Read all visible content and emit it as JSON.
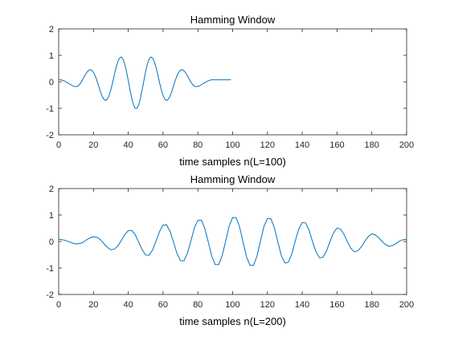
{
  "chart_data": [
    {
      "type": "line",
      "title": "Hamming Window",
      "xlabel": "time samples n(L=100)",
      "ylabel": "",
      "xlim": [
        0,
        200
      ],
      "ylim": [
        -2,
        2
      ],
      "xticks": [
        0,
        20,
        40,
        60,
        80,
        100,
        120,
        140,
        160,
        180,
        200
      ],
      "yticks": [
        -2,
        -1,
        0,
        1,
        2
      ],
      "grid": false,
      "series": [
        {
          "color": "#0072bd",
          "x": [
            0,
            1,
            2,
            3,
            4,
            5,
            6,
            7,
            8,
            9,
            10,
            11,
            12,
            13,
            14,
            15,
            16,
            17,
            18,
            19,
            20,
            21,
            22,
            23,
            24,
            25,
            26,
            27,
            28,
            29,
            30,
            31,
            32,
            33,
            34,
            35,
            36,
            37,
            38,
            39,
            40,
            41,
            42,
            43,
            44,
            45,
            46,
            47,
            48,
            49,
            50,
            51,
            52,
            53,
            54,
            55,
            56,
            57,
            58,
            59,
            60,
            61,
            62,
            63,
            64,
            65,
            66,
            67,
            68,
            69,
            70,
            71,
            72,
            73,
            74,
            75,
            76,
            77,
            78,
            79,
            80,
            81,
            82,
            83,
            84,
            85,
            86,
            87,
            88,
            89,
            90,
            91,
            92,
            93,
            94,
            95,
            96,
            97,
            98,
            99
          ],
          "y": [
            0.08,
            0.08,
            0.06,
            0.04,
            0.01,
            -0.03,
            -0.07,
            -0.11,
            -0.15,
            -0.17,
            -0.18,
            -0.16,
            -0.1,
            -0.01,
            0.11,
            0.23,
            0.34,
            0.42,
            0.46,
            0.44,
            0.36,
            0.23,
            0.05,
            -0.16,
            -0.37,
            -0.54,
            -0.66,
            -0.7,
            -0.65,
            -0.51,
            -0.3,
            -0.03,
            0.26,
            0.54,
            0.76,
            0.9,
            0.94,
            0.86,
            0.67,
            0.39,
            0.05,
            -0.3,
            -0.62,
            -0.87,
            -1.0,
            -1.0,
            -0.87,
            -0.62,
            -0.3,
            0.05,
            0.39,
            0.67,
            0.86,
            0.94,
            0.9,
            0.76,
            0.54,
            0.26,
            -0.03,
            -0.3,
            -0.51,
            -0.65,
            -0.7,
            -0.66,
            -0.54,
            -0.37,
            -0.16,
            0.05,
            0.23,
            0.36,
            0.44,
            0.46,
            0.42,
            0.34,
            0.23,
            0.11,
            -0.01,
            -0.1,
            -0.16,
            -0.18,
            -0.17,
            -0.15,
            -0.11,
            -0.07,
            -0.03,
            0.01,
            0.04,
            0.06,
            0.08,
            0.08,
            0.08,
            0.08,
            0.08,
            0.08,
            0.08,
            0.08,
            0.08,
            0.08,
            0.08,
            0.08
          ]
        }
      ]
    },
    {
      "type": "line",
      "title": "Hamming Window",
      "xlabel": "time samples n(L=200)",
      "ylabel": "",
      "xlim": [
        0,
        200
      ],
      "ylim": [
        -2,
        2
      ],
      "xticks": [
        0,
        20,
        40,
        60,
        80,
        100,
        120,
        140,
        160,
        180,
        200
      ],
      "yticks": [
        -2,
        -1,
        0,
        1,
        2
      ],
      "grid": false,
      "series": [
        {
          "color": "#0072bd",
          "x": [
            0,
            2,
            4,
            6,
            8,
            10,
            12,
            14,
            16,
            18,
            20,
            22,
            24,
            26,
            28,
            30,
            32,
            34,
            36,
            38,
            40,
            42,
            44,
            46,
            48,
            50,
            52,
            54,
            56,
            58,
            60,
            62,
            64,
            66,
            68,
            70,
            72,
            74,
            76,
            78,
            80,
            82,
            84,
            86,
            88,
            90,
            92,
            94,
            96,
            98,
            100,
            102,
            104,
            106,
            108,
            110,
            112,
            114,
            116,
            118,
            120,
            122,
            124,
            126,
            128,
            130,
            132,
            134,
            136,
            138,
            140,
            142,
            144,
            146,
            148,
            150,
            152,
            154,
            156,
            158,
            160,
            162,
            164,
            166,
            168,
            170,
            172,
            174,
            176,
            178,
            180,
            182,
            184,
            186,
            188,
            190,
            192,
            194,
            196,
            198,
            200
          ],
          "y": [
            0.08,
            0.07,
            0.04,
            -0.01,
            -0.06,
            -0.09,
            -0.08,
            -0.03,
            0.06,
            0.14,
            0.18,
            0.16,
            0.07,
            -0.08,
            -0.22,
            -0.31,
            -0.29,
            -0.17,
            0.04,
            0.26,
            0.41,
            0.42,
            0.26,
            -0.02,
            -0.31,
            -0.51,
            -0.52,
            -0.32,
            0.02,
            0.38,
            0.62,
            0.63,
            0.39,
            -0.02,
            -0.45,
            -0.72,
            -0.73,
            -0.44,
            0.02,
            0.51,
            0.8,
            0.81,
            0.49,
            -0.02,
            -0.55,
            -0.87,
            -0.87,
            -0.53,
            0.02,
            0.58,
            0.91,
            0.9,
            0.55,
            -0.02,
            -0.58,
            -0.9,
            -0.9,
            -0.55,
            0.02,
            0.57,
            0.87,
            0.86,
            0.52,
            -0.02,
            -0.53,
            -0.81,
            -0.79,
            -0.47,
            0.02,
            0.47,
            0.72,
            0.7,
            0.41,
            -0.02,
            -0.4,
            -0.62,
            -0.59,
            -0.35,
            0.01,
            0.33,
            0.51,
            0.47,
            0.27,
            -0.01,
            -0.26,
            -0.39,
            -0.35,
            -0.2,
            0.01,
            0.19,
            0.29,
            0.25,
            0.14,
            0.0,
            -0.12,
            -0.18,
            -0.15,
            -0.07,
            0.02,
            0.07,
            0.08
          ]
        }
      ]
    }
  ]
}
